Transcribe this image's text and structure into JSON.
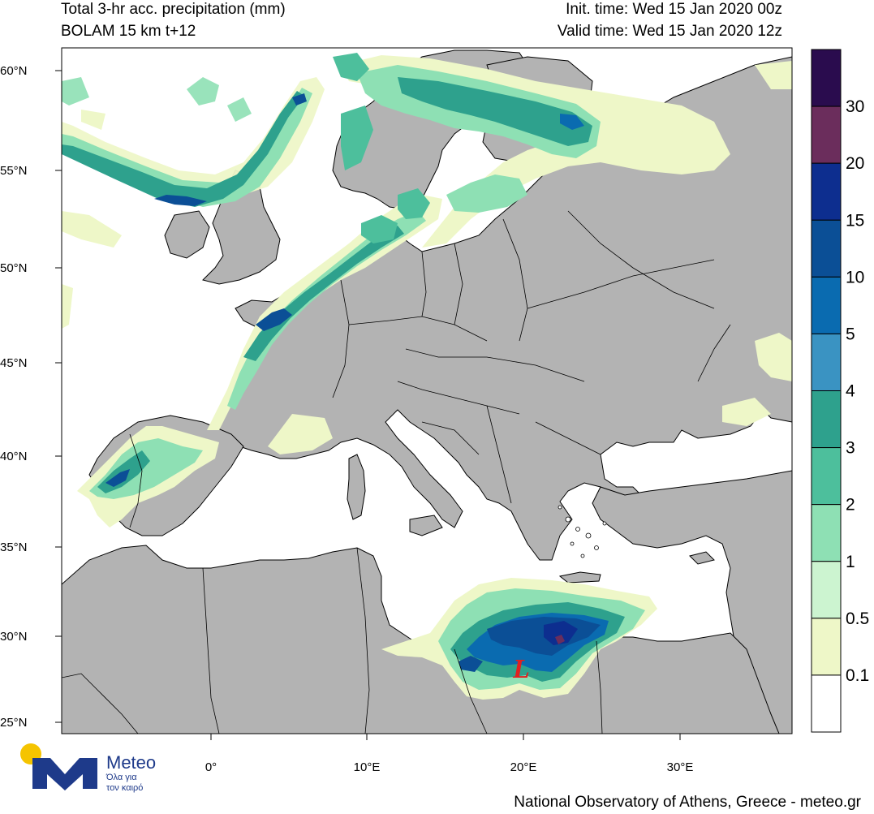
{
  "header": {
    "title_line1": "Total 3-hr acc. precipitation (mm)",
    "title_line2": "BOLAM 15 km t+12",
    "init_time": "Init. time: Wed 15 Jan 2020 00z",
    "valid_time": "Valid time: Wed 15 Jan 2020 12z"
  },
  "axes": {
    "lat_labels": [
      "60°N",
      "55°N",
      "50°N",
      "45°N",
      "40°N",
      "35°N",
      "30°N",
      "25°N"
    ],
    "lon_labels": [
      "0°",
      "10°E",
      "20°E",
      "30°E"
    ]
  },
  "colorbar": {
    "labels": [
      "30",
      "20",
      "15",
      "10",
      "5",
      "4",
      "3",
      "2",
      "1",
      "0.5",
      "0.1"
    ],
    "colors": [
      "#2a0c4e",
      "#6b2d5c",
      "#0d2e8f",
      "#0b4f96",
      "#0a6bb0",
      "#3a93c2",
      "#2ea18d",
      "#4dbf9c",
      "#8ee0b4",
      "#ccf4d0",
      "#eef7c8",
      "#ffffff"
    ]
  },
  "map": {
    "low_marker": "L",
    "land_color": "#b3b3b3",
    "sea_color": "#ffffff",
    "low_color": "#e02020"
  },
  "logo": {
    "name": "Meteo",
    "tagline_1": "Όλα για",
    "tagline_2": "τον καιρό",
    "sun_color": "#f5c400",
    "brand_color": "#1e3a8a"
  },
  "footer": {
    "credit": "National Observatory of Athens, Greece - meteo.gr"
  }
}
